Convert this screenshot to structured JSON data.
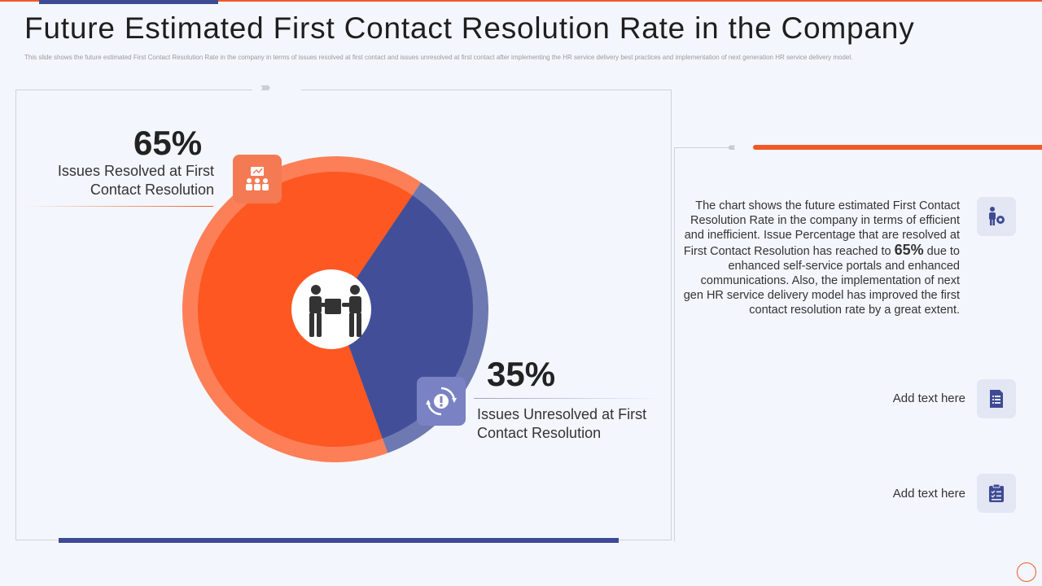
{
  "slide": {
    "title": "Future Estimated First Contact Resolution Rate in the Company",
    "subtitle": "This slide shows the future estimated First Contact Resolution Rate in the company in terms of issues resolved at first contact and issues unresolved at first contact after implementing the HR service delivery best practices and implementation of next generation HR service delivery model."
  },
  "stats": {
    "resolved_pct": "65%",
    "resolved_label_line1": "Issues Resolved at First",
    "resolved_label_line2": "Contact Resolution",
    "unresolved_pct": "35%",
    "unresolved_label_line1": "Issues Unresolved at First",
    "unresolved_label_line2": "Contact Resolution"
  },
  "description": {
    "part1": "The chart shows the future estimated First Contact Resolution Rate in the company in terms of efficient and inefficient. Issue Percentage that are resolved at First Contact Resolution has reached to ",
    "highlight": "65%",
    "part2": " due to enhanced self-service portals and enhanced communications. Also, the implementation of next gen HR service delivery model has improved the first contact resolution rate by a great extent."
  },
  "side_items": [
    {
      "label": "Add text here",
      "icon": "document-list-icon"
    },
    {
      "label": "Add text here",
      "icon": "clipboard-checklist-icon"
    }
  ],
  "icons": {
    "resolved": "presentation-team-icon",
    "unresolved": "gear-exclamation-cycle-icon",
    "center": "handover-people-icon",
    "description": "person-gear-icon"
  },
  "colors": {
    "resolved": "#ff5722",
    "unresolved": "#424f98",
    "accent": "#f05a28",
    "navy": "#3f4a94"
  },
  "chart_data": {
    "type": "pie",
    "categories": [
      "Issues Resolved at First Contact Resolution",
      "Issues Unresolved at First Contact Resolution"
    ],
    "values": [
      65,
      35
    ],
    "colors": [
      "#ff5722",
      "#424f98"
    ]
  }
}
